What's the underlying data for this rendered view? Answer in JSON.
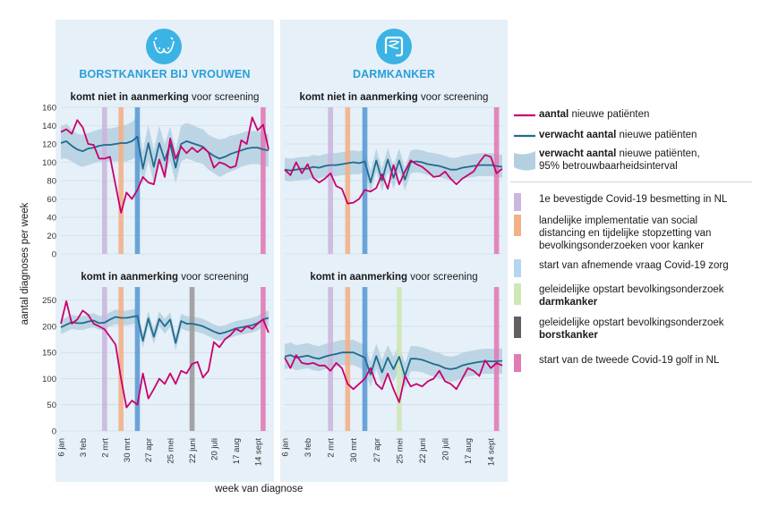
{
  "axes": {
    "ylabel": "aantal diagnoses per week",
    "xlabel": "week van diagnose"
  },
  "columns": [
    {
      "title": "BORSTKANKER BIJ VROUWEN",
      "icon": "breast-icon"
    },
    {
      "title": "DARMKANKER",
      "icon": "intestine-icon"
    }
  ],
  "subtitles": {
    "not_bold": "komt niet in aanmerking",
    "yes_bold": "komt in aanmerking",
    "rest": " voor screening"
  },
  "x_ticks": [
    "6 jan",
    "3 feb",
    "2 mrt",
    "30 mrt",
    "27 apr",
    "25 mei",
    "22 juni",
    "20 juli",
    "17 aug",
    "14 sept"
  ],
  "legend": {
    "series": [
      {
        "bold": "aantal",
        "rest": " nieuwe patiënten",
        "color": "#c8006e"
      },
      {
        "bold": "verwacht aantal",
        "rest": " nieuwe patiënten",
        "color": "#1f6b8f"
      },
      {
        "bold": "verwacht aantal",
        "rest": " nieuwe patiënten,",
        "line2": "95% betrouwbaarheidsinterval",
        "color": "#b4d0e0"
      }
    ],
    "events": [
      {
        "line1": "1e bevestigde Covid-19 besmetting in NL",
        "color": "#cbb6de"
      },
      {
        "line1": "landelijke implementatie van social",
        "line2": "distancing en tijdelijke stopzetting van",
        "line3": "bevolkingsonderzoeken voor kanker",
        "color": "#f2b088"
      },
      {
        "line1": "start van afnemende vraag Covid-19 zorg",
        "color": "#b5d6ee"
      },
      {
        "line1": "geleidelijke opstart bevolkingsonderzoek",
        "line2": "darmkanker",
        "color": "#cde7b6"
      },
      {
        "line1": "geleidelijke opstart bevolkingsonderzoek",
        "line2": "borstkanker",
        "color": "#606060"
      },
      {
        "line1": "start van de tweede Covid-19 golf in NL",
        "color": "#e07bb5"
      }
    ]
  },
  "chart_data": [
    {
      "type": "line",
      "title": "komt niet in aanmerking voor screening",
      "panel": "BORSTKANKER BIJ VROUWEN",
      "ylim": [
        0,
        160
      ],
      "yticks": [
        0,
        20,
        40,
        60,
        80,
        100,
        120,
        140,
        160
      ],
      "events_week": [
        8,
        11,
        14,
        37
      ],
      "series": [
        {
          "name": "aantal nieuwe patiënten",
          "values": [
            133,
            136,
            131,
            146,
            138,
            120,
            119,
            104,
            104,
            106,
            75,
            45,
            67,
            60,
            70,
            84,
            78,
            76,
            103,
            84,
            126,
            104,
            117,
            110,
            116,
            111,
            116,
            111,
            94,
            100,
            98,
            94,
            96,
            124,
            120,
            149,
            135,
            141,
            114
          ]
        },
        {
          "name": "verwacht aantal nieuwe patiënten",
          "values": [
            121,
            123,
            118,
            114,
            112,
            115,
            116,
            118,
            119,
            119,
            120,
            121,
            121,
            123,
            128,
            93,
            121,
            95,
            121,
            102,
            120,
            94,
            120,
            123,
            121,
            119,
            117,
            111,
            107,
            104,
            106,
            109,
            111,
            113,
            115,
            116,
            116,
            114,
            113
          ]
        },
        {
          "name": "95% betrouwbaarheidsinterval (onder)",
          "values": [
            104,
            104,
            101,
            97,
            95,
            97,
            99,
            101,
            101,
            101,
            101,
            101,
            101,
            103,
            107,
            76,
            102,
            78,
            103,
            86,
            102,
            77,
            101,
            104,
            102,
            100,
            98,
            92,
            88,
            84,
            87,
            90,
            92,
            95,
            97,
            98,
            98,
            96,
            95
          ]
        },
        {
          "name": "95% betrouwbaarheidsinterval (boven)",
          "values": [
            139,
            142,
            136,
            131,
            130,
            132,
            134,
            136,
            137,
            137,
            138,
            140,
            141,
            144,
            150,
            112,
            141,
            113,
            140,
            120,
            139,
            113,
            140,
            143,
            141,
            138,
            136,
            130,
            127,
            125,
            126,
            129,
            130,
            132,
            134,
            134,
            134,
            132,
            131
          ]
        }
      ]
    },
    {
      "type": "line",
      "title": "komt niet in aanmerking voor screening",
      "panel": "DARMKANKER",
      "ylim": [
        0,
        160
      ],
      "yticks": [
        0,
        20,
        40,
        60,
        80,
        100,
        120,
        140,
        160
      ],
      "events_week": [
        8,
        11,
        14,
        37
      ],
      "series": [
        {
          "name": "aantal nieuwe patiënten",
          "values": [
            92,
            86,
            100,
            88,
            98,
            83,
            78,
            82,
            88,
            74,
            71,
            55,
            56,
            60,
            70,
            68,
            72,
            87,
            71,
            97,
            76,
            90,
            102,
            98,
            95,
            90,
            84,
            85,
            90,
            82,
            76,
            82,
            86,
            90,
            100,
            108,
            106,
            88,
            93
          ]
        },
        {
          "name": "verwacht aantal nieuwe patiënten",
          "values": [
            92,
            91,
            92,
            93,
            93,
            95,
            94,
            96,
            97,
            97,
            98,
            99,
            100,
            99,
            101,
            78,
            102,
            80,
            103,
            83,
            102,
            81,
            100,
            101,
            100,
            98,
            97,
            96,
            94,
            92,
            92,
            94,
            95,
            96,
            97,
            97,
            97,
            96,
            95
          ]
        },
        {
          "name": "95% betrouwbaarheidsinterval (onder)",
          "values": [
            80,
            79,
            80,
            81,
            81,
            83,
            82,
            84,
            85,
            85,
            86,
            86,
            87,
            87,
            89,
            66,
            90,
            68,
            90,
            71,
            90,
            69,
            88,
            89,
            88,
            86,
            85,
            84,
            82,
            80,
            80,
            82,
            83,
            84,
            85,
            85,
            85,
            84,
            83
          ]
        },
        {
          "name": "95% betrouwbaarheidsinterval (boven)",
          "values": [
            105,
            104,
            105,
            106,
            106,
            108,
            107,
            109,
            110,
            110,
            111,
            112,
            113,
            112,
            114,
            91,
            115,
            93,
            116,
            96,
            115,
            94,
            113,
            114,
            113,
            111,
            110,
            109,
            107,
            105,
            105,
            107,
            108,
            109,
            110,
            110,
            110,
            109,
            108
          ]
        }
      ]
    },
    {
      "type": "line",
      "title": "komt in aanmerking voor screening",
      "panel": "BORSTKANKER BIJ VROUWEN",
      "ylim": [
        0,
        275
      ],
      "yticks": [
        0,
        50,
        100,
        150,
        200,
        250
      ],
      "events_week": [
        8,
        11,
        14,
        24,
        37
      ],
      "series": [
        {
          "name": "aantal nieuwe patiënten",
          "values": [
            205,
            248,
            205,
            213,
            230,
            222,
            205,
            200,
            194,
            180,
            165,
            100,
            45,
            58,
            50,
            110,
            62,
            80,
            100,
            90,
            110,
            90,
            115,
            110,
            128,
            132,
            102,
            115,
            170,
            160,
            175,
            183,
            195,
            190,
            200,
            195,
            205,
            213,
            188
          ]
        },
        {
          "name": "verwacht aantal nieuwe patiënten",
          "values": [
            198,
            203,
            208,
            206,
            206,
            209,
            211,
            206,
            207,
            213,
            218,
            216,
            216,
            218,
            220,
            172,
            215,
            180,
            214,
            200,
            213,
            168,
            210,
            205,
            205,
            203,
            200,
            195,
            190,
            186,
            188,
            192,
            196,
            198,
            200,
            202,
            206,
            213,
            216
          ]
        },
        {
          "name": "95% betrouwbaarheidsinterval (onder)",
          "values": [
            185,
            190,
            195,
            193,
            193,
            196,
            198,
            193,
            194,
            200,
            204,
            202,
            202,
            204,
            206,
            158,
            201,
            166,
            200,
            186,
            199,
            154,
            196,
            191,
            191,
            189,
            186,
            181,
            176,
            172,
            174,
            178,
            182,
            184,
            186,
            188,
            192,
            199,
            202
          ]
        },
        {
          "name": "95% betrouwbaarheidsinterval (boven)",
          "values": [
            212,
            217,
            222,
            220,
            220,
            223,
            225,
            220,
            221,
            227,
            232,
            230,
            230,
            232,
            234,
            186,
            229,
            194,
            228,
            214,
            227,
            182,
            224,
            219,
            219,
            217,
            214,
            209,
            204,
            200,
            202,
            206,
            210,
            212,
            214,
            216,
            220,
            227,
            230
          ]
        }
      ]
    },
    {
      "type": "line",
      "title": "komt in aanmerking voor screening",
      "panel": "DARMKANKER",
      "ylim": [
        0,
        275
      ],
      "yticks": [
        0,
        50,
        100,
        150,
        200,
        250
      ],
      "events_week": [
        8,
        11,
        14,
        20,
        37
      ],
      "series": [
        {
          "name": "aantal nieuwe patiënten",
          "values": [
            140,
            120,
            145,
            130,
            128,
            130,
            125,
            125,
            115,
            130,
            120,
            90,
            80,
            90,
            100,
            120,
            90,
            80,
            110,
            80,
            55,
            105,
            85,
            90,
            85,
            95,
            100,
            115,
            95,
            90,
            80,
            100,
            120,
            115,
            105,
            135,
            120,
            130,
            125
          ]
        },
        {
          "name": "verwacht aantal nieuwe patiënten",
          "values": [
            142,
            145,
            140,
            142,
            144,
            140,
            138,
            142,
            145,
            147,
            150,
            150,
            150,
            145,
            140,
            108,
            143,
            112,
            140,
            118,
            142,
            105,
            138,
            138,
            136,
            132,
            128,
            125,
            120,
            118,
            120,
            125,
            128,
            130,
            132,
            133,
            133,
            133,
            134
          ]
        },
        {
          "name": "95% betrouwbaarheidsinterval (onder)",
          "values": [
            118,
            121,
            116,
            118,
            120,
            116,
            114,
            118,
            121,
            123,
            126,
            126,
            126,
            121,
            116,
            84,
            119,
            88,
            116,
            94,
            118,
            81,
            114,
            114,
            112,
            108,
            104,
            101,
            96,
            94,
            96,
            101,
            104,
            106,
            108,
            109,
            109,
            109,
            110
          ]
        },
        {
          "name": "95% betrouwbaarheidsinterval (boven)",
          "values": [
            166,
            169,
            164,
            166,
            168,
            164,
            162,
            166,
            169,
            171,
            174,
            174,
            174,
            169,
            164,
            132,
            167,
            136,
            164,
            142,
            166,
            129,
            162,
            162,
            160,
            156,
            152,
            149,
            144,
            142,
            144,
            149,
            152,
            154,
            156,
            157,
            157,
            157,
            158
          ]
        }
      ]
    }
  ]
}
